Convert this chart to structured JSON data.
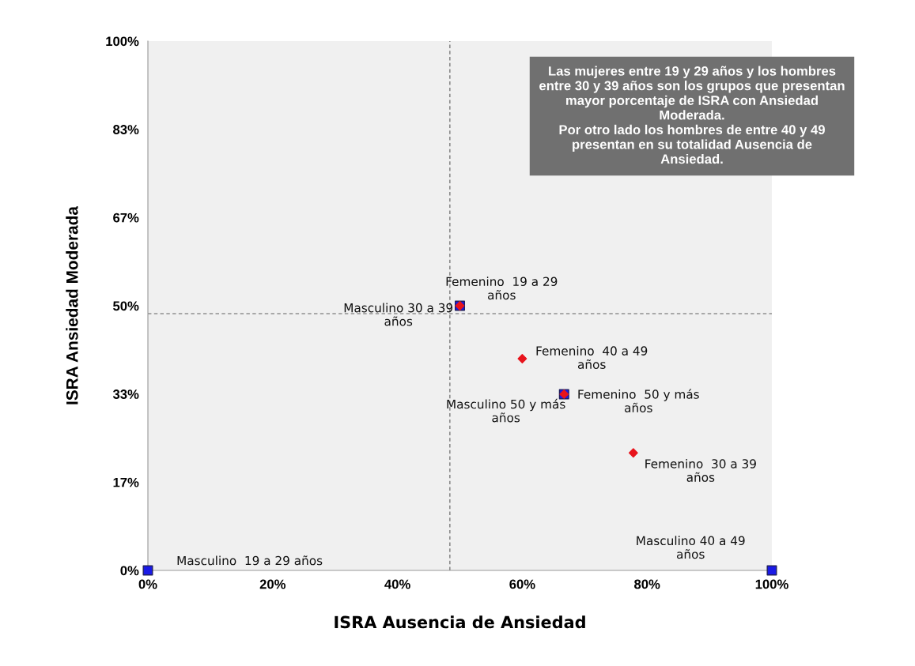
{
  "chart_data": {
    "type": "scatter",
    "xlabel": "ISRA Ausencia de Ansiedad",
    "ylabel": "ISRA Ansiedad Moderada",
    "xlim": [
      0,
      100
    ],
    "ylim": [
      0,
      100
    ],
    "xticks": [
      {
        "value": 0,
        "label": "0%"
      },
      {
        "value": 20,
        "label": "20%"
      },
      {
        "value": 40,
        "label": "40%"
      },
      {
        "value": 60,
        "label": "60%"
      },
      {
        "value": 80,
        "label": "80%"
      },
      {
        "value": 100,
        "label": "100%"
      }
    ],
    "yticks": [
      {
        "value": 0,
        "label": "0%"
      },
      {
        "value": 16.67,
        "label": "17%"
      },
      {
        "value": 33.33,
        "label": "33%"
      },
      {
        "value": 50,
        "label": "50%"
      },
      {
        "value": 66.67,
        "label": "67%"
      },
      {
        "value": 83.33,
        "label": "83%"
      },
      {
        "value": 100,
        "label": "100%"
      }
    ],
    "grid": false,
    "series": [
      {
        "color": "#1a1ae6",
        "marker": "square",
        "x": [
          0,
          100,
          50,
          66.7
        ],
        "values": [
          0,
          0,
          50,
          33.3
        ]
      },
      {
        "color": "#e8141c",
        "marker": "diamond",
        "x": [
          50,
          60,
          66.7,
          77.8
        ],
        "values": [
          50,
          40,
          33.3,
          22.2
        ]
      }
    ],
    "ref_lines": [
      {
        "axis": "x",
        "value": 48.4,
        "color": "#606060",
        "line_style": "dashed"
      },
      {
        "axis": "y",
        "value": 48.5,
        "color": "#606060",
        "line_style": "dashed"
      }
    ],
    "annotations": [
      {
        "text": "Masculino  19 a 29 años",
        "x": 0,
        "y": 0
      },
      {
        "text": "Masculino 40 a 49\naños",
        "x": 100,
        "y": 0
      },
      {
        "text": "Masculino 30 a 39\naños",
        "x": 50,
        "y": 50
      },
      {
        "text": "Femenino  19 a 29\naños",
        "x": 50,
        "y": 50
      },
      {
        "text": "Femenino  40 a 49\naños",
        "x": 60,
        "y": 40
      },
      {
        "text": "Masculino 50 y más\naños",
        "x": 66.7,
        "y": 33.3
      },
      {
        "text": "Femenino  50 y más\naños",
        "x": 66.7,
        "y": 33.3
      },
      {
        "text": "Femenino  30 a 39\naños",
        "x": 77.8,
        "y": 22.2
      },
      "Las mujeres entre 19 y 29 años y los hombres\nentre 30 y 39 años son los grupos que presentan\nmayor porcentaje de ISRA con Ansiedad\nModerada.\nPor otro lado los hombres de entre 40 y 49\npresentan en su totalidad Ausencia de\nAnsiedad."
    ]
  }
}
